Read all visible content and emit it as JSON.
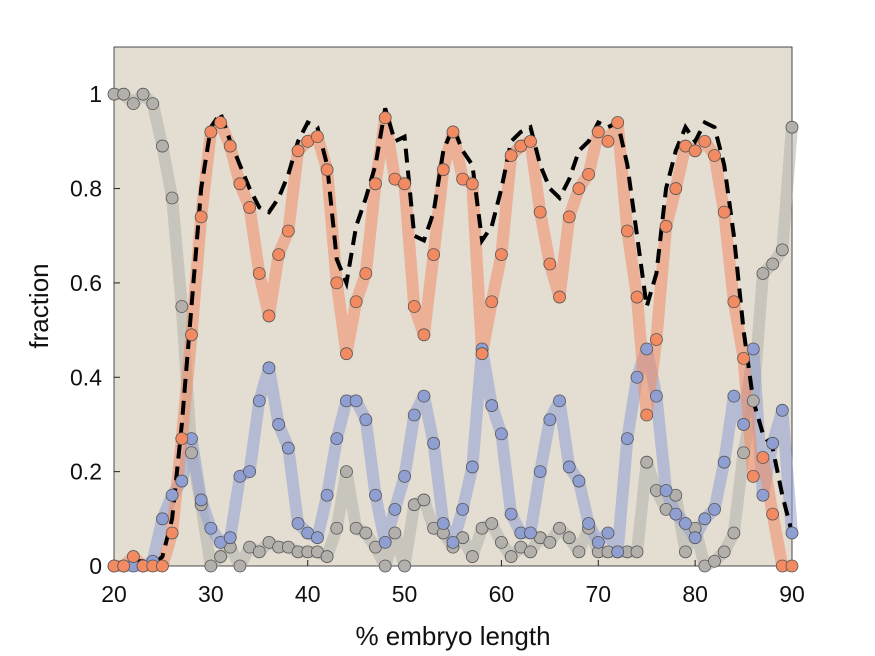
{
  "chart_data": {
    "type": "scatter",
    "xlabel": "% embryo length",
    "ylabel": "fraction",
    "xlim": [
      20,
      90
    ],
    "ylim": [
      0,
      1.1
    ],
    "xticks": [
      20,
      30,
      40,
      50,
      60,
      70,
      80,
      90
    ],
    "yticks": [
      0,
      0.2,
      0.4,
      0.6,
      0.8,
      1
    ],
    "background": "#e3ddd2",
    "x": [
      20,
      21,
      22,
      23,
      24,
      25,
      26,
      27,
      28,
      29,
      30,
      31,
      32,
      33,
      34,
      35,
      36,
      37,
      38,
      39,
      40,
      41,
      42,
      43,
      44,
      45,
      46,
      47,
      48,
      49,
      50,
      51,
      52,
      53,
      54,
      55,
      56,
      57,
      58,
      59,
      60,
      61,
      62,
      63,
      64,
      65,
      66,
      67,
      68,
      69,
      70,
      71,
      72,
      73,
      74,
      75,
      76,
      77,
      78,
      79,
      80,
      81,
      82,
      83,
      84,
      85,
      86,
      87,
      88,
      89,
      90
    ],
    "series": [
      {
        "color": "#b3b0ab",
        "style": "markers",
        "values": [
          1,
          1,
          0.98,
          1,
          0.98,
          0.89,
          0.78,
          0.55,
          0.24,
          0.13,
          0,
          0.02,
          0.04,
          0,
          0.04,
          0.03,
          0.05,
          0.04,
          0.04,
          0.03,
          0.03,
          0.03,
          0.02,
          0.08,
          0.2,
          0.08,
          0.07,
          0.04,
          0,
          0.07,
          0,
          0.13,
          0.14,
          0.08,
          0.07,
          0.04,
          0.06,
          0.02,
          0.08,
          0.09,
          0.05,
          0.02,
          0.04,
          0.03,
          0.06,
          0.05,
          0.08,
          0.06,
          0.03,
          0.08,
          0.03,
          0.03,
          0.03,
          0.03,
          0.03,
          0.22,
          0.16,
          0.12,
          0.15,
          0.03,
          0.08,
          0,
          0.01,
          0.03,
          0.07,
          0.24,
          0.35,
          0.62,
          0.64,
          0.67,
          0.93
        ]
      },
      {
        "color": "#8f9fd2",
        "style": "markers",
        "values": [
          0,
          0,
          0,
          0,
          0.01,
          0.1,
          0.15,
          0.18,
          0.27,
          0.14,
          0.08,
          0.05,
          0.06,
          0.19,
          0.2,
          0.35,
          0.42,
          0.3,
          0.25,
          0.09,
          0.07,
          0.06,
          0.15,
          0.27,
          0.35,
          0.35,
          0.31,
          0.15,
          0.05,
          0.12,
          0.19,
          0.32,
          0.36,
          0.26,
          0.09,
          0.05,
          0.12,
          0.21,
          0.46,
          0.34,
          0.28,
          0.11,
          0.07,
          0.07,
          0.2,
          0.31,
          0.35,
          0.21,
          0.18,
          0.09,
          0.05,
          0.07,
          0.03,
          0.27,
          0.4,
          0.46,
          0.36,
          0.16,
          0.11,
          0.09,
          0.06,
          0.1,
          0.12,
          0.22,
          0.36,
          0.3,
          0.46,
          0.15,
          0.26,
          0.33,
          0.07
        ]
      },
      {
        "color": "#f28a62",
        "style": "markers",
        "values": [
          0,
          0,
          0.02,
          0,
          0,
          0,
          0.07,
          0.27,
          0.49,
          0.74,
          0.92,
          0.94,
          0.89,
          0.81,
          0.76,
          0.62,
          0.53,
          0.66,
          0.71,
          0.88,
          0.9,
          0.91,
          0.84,
          0.6,
          0.45,
          0.56,
          0.62,
          0.81,
          0.95,
          0.82,
          0.81,
          0.55,
          0.49,
          0.66,
          0.84,
          0.92,
          0.82,
          0.81,
          0.45,
          0.56,
          0.66,
          0.87,
          0.89,
          0.9,
          0.75,
          0.64,
          0.57,
          0.74,
          0.8,
          0.83,
          0.92,
          0.9,
          0.94,
          0.71,
          0.57,
          0.32,
          0.48,
          0.72,
          0.8,
          0.89,
          0.88,
          0.9,
          0.87,
          0.75,
          0.56,
          0.44,
          0.19,
          0.23,
          0.11,
          0,
          0
        ]
      },
      {
        "color": "#000000",
        "style": "dashed",
        "values": [
          0,
          0,
          0.01,
          0.01,
          0,
          0.02,
          0.1,
          0.3,
          0.55,
          0.8,
          0.93,
          0.96,
          0.9,
          0.85,
          0.8,
          0.76,
          0.75,
          0.78,
          0.83,
          0.9,
          0.94,
          0.93,
          0.85,
          0.65,
          0.6,
          0.72,
          0.78,
          0.85,
          0.97,
          0.9,
          0.91,
          0.7,
          0.69,
          0.75,
          0.88,
          0.93,
          0.88,
          0.85,
          0.69,
          0.72,
          0.8,
          0.9,
          0.92,
          0.93,
          0.85,
          0.8,
          0.78,
          0.82,
          0.88,
          0.9,
          0.94,
          0.93,
          0.94,
          0.85,
          0.7,
          0.55,
          0.62,
          0.8,
          0.88,
          0.93,
          0.9,
          0.94,
          0.93,
          0.85,
          0.7,
          0.5,
          0.35,
          0.28,
          0.25,
          0.15,
          0.07
        ]
      }
    ]
  }
}
